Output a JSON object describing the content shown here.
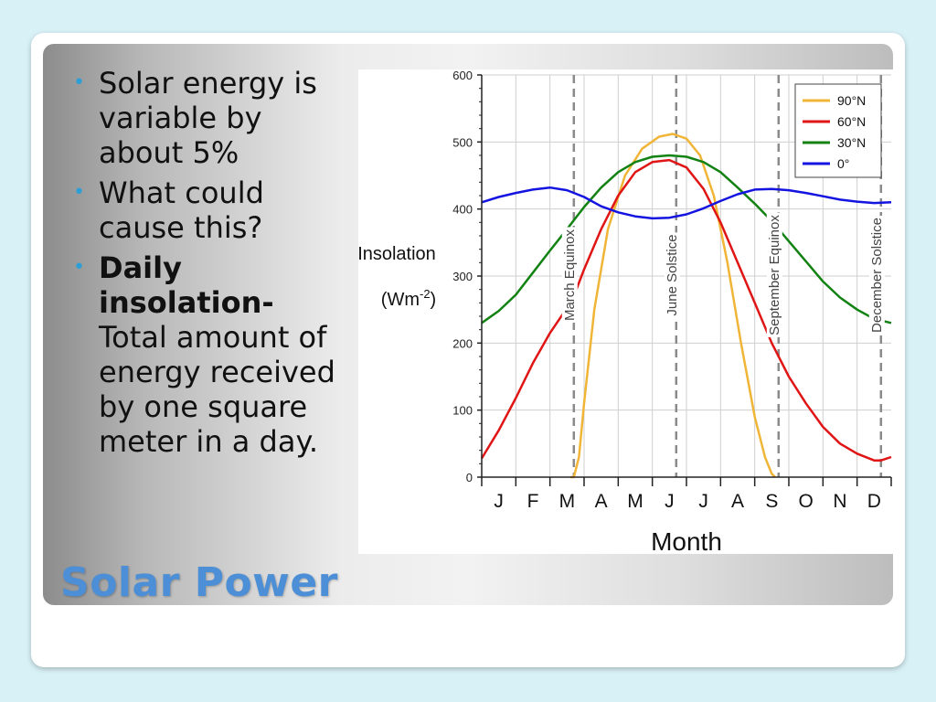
{
  "slide": {
    "title": "Solar Power",
    "bullets": [
      {
        "text": "Solar energy is variable by about 5%"
      },
      {
        "text": "What could cause this?"
      },
      {
        "bold": "Daily insolation-",
        "text": " Total amount of energy received by one square meter in a day."
      }
    ]
  },
  "colors": {
    "accent": "#2e9fd4",
    "title": "#4d8fd6",
    "s90": "#f0b537",
    "s60": "#e01515",
    "s30": "#128212",
    "s0": "#1414e0"
  },
  "chart_data": {
    "type": "line",
    "xlabel": "Month",
    "ylabel": "Insolation",
    "ylabel_unit_base": "(Wm",
    "ylabel_unit_exp": "-2",
    "ylabel_unit_end": ")",
    "months": [
      "J",
      "F",
      "M",
      "A",
      "M",
      "J",
      "J",
      "A",
      "S",
      "O",
      "N",
      "D"
    ],
    "xlim": [
      0,
      12
    ],
    "ylim": [
      0,
      600
    ],
    "yticks": [
      0,
      100,
      200,
      300,
      400,
      500,
      600
    ],
    "grid": true,
    "legend_position": "top-right",
    "events": [
      {
        "name": "March Equinox",
        "x": 2.7
      },
      {
        "name": "June Solstice",
        "x": 5.7
      },
      {
        "name": "September Equinox",
        "x": 8.7
      },
      {
        "name": "December Solstice",
        "x": 11.7
      }
    ],
    "series": [
      {
        "name": "90°N",
        "color": "#f0b537",
        "points": [
          [
            2.6,
            0
          ],
          [
            2.7,
            0
          ],
          [
            2.85,
            30
          ],
          [
            3.0,
            110
          ],
          [
            3.3,
            250
          ],
          [
            3.7,
            370
          ],
          [
            4.2,
            450
          ],
          [
            4.7,
            490
          ],
          [
            5.2,
            508
          ],
          [
            5.6,
            512
          ],
          [
            6.0,
            505
          ],
          [
            6.4,
            480
          ],
          [
            6.8,
            420
          ],
          [
            7.2,
            320
          ],
          [
            7.6,
            200
          ],
          [
            8.0,
            90
          ],
          [
            8.3,
            30
          ],
          [
            8.5,
            5
          ],
          [
            8.6,
            0
          ]
        ]
      },
      {
        "name": "60°N",
        "color": "#e01515",
        "points": [
          [
            0,
            28
          ],
          [
            0.5,
            70
          ],
          [
            1.0,
            118
          ],
          [
            1.5,
            170
          ],
          [
            2.0,
            215
          ],
          [
            2.4,
            245
          ],
          [
            2.7,
            270
          ],
          [
            3.0,
            310
          ],
          [
            3.5,
            370
          ],
          [
            4.0,
            420
          ],
          [
            4.5,
            455
          ],
          [
            5.0,
            470
          ],
          [
            5.5,
            473
          ],
          [
            6.0,
            462
          ],
          [
            6.5,
            430
          ],
          [
            7.0,
            380
          ],
          [
            7.5,
            320
          ],
          [
            8.0,
            260
          ],
          [
            8.5,
            200
          ],
          [
            9.0,
            150
          ],
          [
            9.5,
            110
          ],
          [
            10.0,
            75
          ],
          [
            10.5,
            50
          ],
          [
            11.0,
            35
          ],
          [
            11.5,
            25
          ],
          [
            11.7,
            25
          ],
          [
            12.0,
            30
          ]
        ]
      },
      {
        "name": "30°N",
        "color": "#128212",
        "points": [
          [
            0,
            230
          ],
          [
            0.5,
            248
          ],
          [
            1.0,
            272
          ],
          [
            1.5,
            305
          ],
          [
            2.0,
            338
          ],
          [
            2.5,
            370
          ],
          [
            3.0,
            403
          ],
          [
            3.5,
            432
          ],
          [
            4.0,
            455
          ],
          [
            4.5,
            470
          ],
          [
            5.0,
            478
          ],
          [
            5.5,
            480
          ],
          [
            6.0,
            478
          ],
          [
            6.5,
            470
          ],
          [
            7.0,
            455
          ],
          [
            7.5,
            432
          ],
          [
            8.0,
            408
          ],
          [
            8.5,
            382
          ],
          [
            9.0,
            352
          ],
          [
            9.5,
            322
          ],
          [
            10.0,
            292
          ],
          [
            10.5,
            268
          ],
          [
            11.0,
            250
          ],
          [
            11.5,
            236
          ],
          [
            12.0,
            230
          ]
        ]
      },
      {
        "name": "0°",
        "color": "#1414e0",
        "points": [
          [
            0,
            410
          ],
          [
            0.5,
            418
          ],
          [
            1.0,
            424
          ],
          [
            1.5,
            429
          ],
          [
            2.0,
            432
          ],
          [
            2.5,
            428
          ],
          [
            3.0,
            418
          ],
          [
            3.5,
            404
          ],
          [
            4.0,
            395
          ],
          [
            4.5,
            389
          ],
          [
            5.0,
            386
          ],
          [
            5.5,
            387
          ],
          [
            6.0,
            392
          ],
          [
            6.5,
            401
          ],
          [
            7.0,
            412
          ],
          [
            7.5,
            422
          ],
          [
            8.0,
            429
          ],
          [
            8.5,
            430
          ],
          [
            9.0,
            428
          ],
          [
            9.5,
            424
          ],
          [
            10.0,
            419
          ],
          [
            10.5,
            414
          ],
          [
            11.0,
            411
          ],
          [
            11.5,
            409
          ],
          [
            12.0,
            410
          ]
        ]
      }
    ]
  }
}
